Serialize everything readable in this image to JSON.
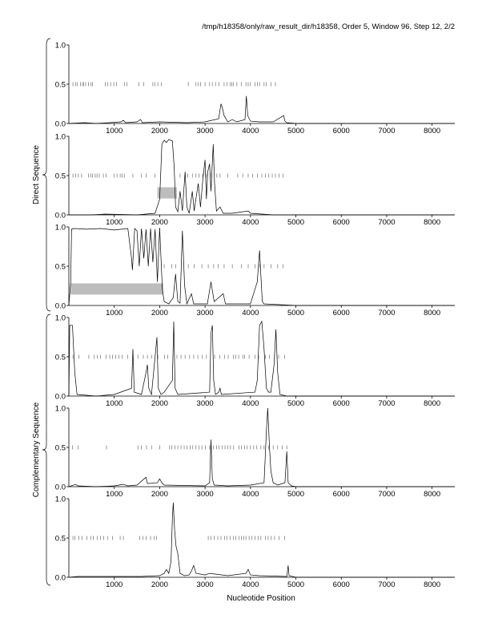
{
  "title": "/tmp/h18358/only/raw_result_dir/h18358, Order 5, Window 96, Step 12, 2/2",
  "xlabel": "Nucleotide Position",
  "group_labels": {
    "direct": "Direct Sequence",
    "complementary": "Complementary Sequence"
  },
  "colors": {
    "line": "#000000",
    "bar": "#bdbdbd",
    "axis": "#000000"
  },
  "chart_data": {
    "type": "line",
    "x_range": [
      0,
      8500
    ],
    "y_range": [
      0,
      1
    ],
    "x_ticks": [
      1000,
      2000,
      3000,
      4000,
      5000,
      6000,
      7000,
      8000
    ],
    "y_ticks": [
      0.0,
      0.5,
      1.0
    ],
    "x_tick_labels": [
      "1000",
      "2000",
      "3000",
      "4000",
      "5000",
      "6000",
      "7000",
      "8000"
    ],
    "y_tick_labels": [
      "0.0",
      "0.5",
      "1.0"
    ],
    "panels": [
      {
        "group": "direct",
        "line": [
          [
            0,
            0
          ],
          [
            350,
            0.01
          ],
          [
            600,
            0
          ],
          [
            900,
            0.01
          ],
          [
            1150,
            0.02
          ],
          [
            1200,
            0.04
          ],
          [
            1250,
            0.01
          ],
          [
            1500,
            0.02
          ],
          [
            1580,
            0.05
          ],
          [
            1620,
            0.01
          ],
          [
            2000,
            0.02
          ],
          [
            2600,
            0.01
          ],
          [
            3000,
            0.02
          ],
          [
            3300,
            0.06
          ],
          [
            3350,
            0.25
          ],
          [
            3380,
            0.2
          ],
          [
            3420,
            0.1
          ],
          [
            3500,
            0.02
          ],
          [
            3600,
            0.05
          ],
          [
            3700,
            0.02
          ],
          [
            3880,
            0.05
          ],
          [
            3910,
            0.35
          ],
          [
            3940,
            0.1
          ],
          [
            4000,
            0.03
          ],
          [
            4200,
            0.02
          ],
          [
            4500,
            0.02
          ],
          [
            4730,
            0.1
          ],
          [
            4760,
            0.03
          ],
          [
            4800,
            0.01
          ],
          [
            5000,
            0
          ],
          [
            8500,
            0
          ]
        ],
        "marks": [
          90,
          150,
          190,
          260,
          300,
          330,
          370,
          430,
          490,
          520,
          800,
          860,
          920,
          990,
          1050,
          1230,
          1280,
          1540,
          1650,
          1850,
          1900,
          1960,
          2040,
          2630,
          2800,
          2850,
          2900,
          3000,
          3100,
          3160,
          3230,
          3310,
          3420,
          3480,
          3550,
          3590,
          3620,
          3700,
          3800,
          3900,
          3950,
          4000,
          4100,
          4150,
          4200,
          4300,
          4350,
          4450,
          4550
        ],
        "bars": []
      },
      {
        "group": "direct",
        "line": [
          [
            0,
            0
          ],
          [
            500,
            0
          ],
          [
            800,
            0.01
          ],
          [
            1500,
            0
          ],
          [
            1900,
            0.02
          ],
          [
            2000,
            0.2
          ],
          [
            2050,
            0.9
          ],
          [
            2100,
            0.95
          ],
          [
            2150,
            0.92
          ],
          [
            2200,
            0.96
          ],
          [
            2280,
            0.94
          ],
          [
            2320,
            0.6
          ],
          [
            2350,
            0.1
          ],
          [
            2400,
            0.04
          ],
          [
            2450,
            0.3
          ],
          [
            2500,
            0.05
          ],
          [
            2560,
            0.55
          ],
          [
            2600,
            0.1
          ],
          [
            2650,
            0.02
          ],
          [
            2720,
            0.3
          ],
          [
            2760,
            0.05
          ],
          [
            2850,
            0.4
          ],
          [
            2900,
            0.1
          ],
          [
            2950,
            0.45
          ],
          [
            3000,
            0.7
          ],
          [
            3030,
            0.2
          ],
          [
            3060,
            0.55
          ],
          [
            3100,
            0.65
          ],
          [
            3130,
            0.3
          ],
          [
            3180,
            0.9
          ],
          [
            3210,
            0.4
          ],
          [
            3250,
            0.05
          ],
          [
            3330,
            0.1
          ],
          [
            3400,
            0.02
          ],
          [
            3600,
            0.02
          ],
          [
            3950,
            0.05
          ],
          [
            4000,
            0.02
          ],
          [
            4500,
            0
          ],
          [
            8500,
            0
          ]
        ],
        "marks": [
          90,
          150,
          210,
          280,
          430,
          480,
          520,
          580,
          620,
          670,
          760,
          820,
          1000,
          1060,
          1130,
          1170,
          1220,
          1410,
          1600,
          1700,
          1900,
          2450,
          2620,
          2720,
          2800,
          2870,
          2950,
          3030,
          3120,
          3260,
          3330,
          3500,
          3720,
          3830,
          3950,
          4050,
          4150,
          4250,
          4330,
          4400,
          4480,
          4550,
          4630,
          4720
        ],
        "bars": [
          [
            1950,
            2380,
            0.28
          ]
        ]
      },
      {
        "group": "direct",
        "line": [
          [
            0,
            0
          ],
          [
            40,
            0.3
          ],
          [
            60,
            0.97
          ],
          [
            100,
            0.98
          ],
          [
            400,
            0.97
          ],
          [
            700,
            0.98
          ],
          [
            1000,
            0.96
          ],
          [
            1300,
            0.98
          ],
          [
            1380,
            0.6
          ],
          [
            1400,
            0.45
          ],
          [
            1450,
            0.98
          ],
          [
            1500,
            0.95
          ],
          [
            1550,
            0.5
          ],
          [
            1600,
            0.98
          ],
          [
            1650,
            0.6
          ],
          [
            1700,
            0.97
          ],
          [
            1750,
            0.5
          ],
          [
            1800,
            0.98
          ],
          [
            1850,
            0.55
          ],
          [
            1900,
            0.97
          ],
          [
            1950,
            0.3
          ],
          [
            2000,
            0.99
          ],
          [
            2060,
            0.2
          ],
          [
            2100,
            0.05
          ],
          [
            2200,
            0.02
          ],
          [
            2300,
            0.1
          ],
          [
            2350,
            0.4
          ],
          [
            2400,
            0.05
          ],
          [
            2450,
            0.03
          ],
          [
            2500,
            0.95
          ],
          [
            2550,
            0.25
          ],
          [
            2600,
            0.02
          ],
          [
            2700,
            0.15
          ],
          [
            2750,
            0.02
          ],
          [
            3050,
            0.02
          ],
          [
            3130,
            0.3
          ],
          [
            3200,
            0.05
          ],
          [
            3400,
            0.15
          ],
          [
            3450,
            0.02
          ],
          [
            4000,
            0.02
          ],
          [
            4150,
            0.3
          ],
          [
            4200,
            0.7
          ],
          [
            4260,
            0.05
          ],
          [
            4300,
            0.02
          ],
          [
            5000,
            0
          ],
          [
            8500,
            0
          ]
        ],
        "marks": [
          2100,
          2270,
          2350,
          2630,
          2760,
          2930,
          3070,
          3190,
          3290,
          3420,
          3600,
          3800,
          3950,
          4100,
          4200,
          4300,
          4450,
          4600,
          4720
        ],
        "bars": [
          [
            40,
            2080,
            0.21
          ]
        ]
      },
      {
        "group": "complementary",
        "line": [
          [
            0,
            0
          ],
          [
            20,
            0.9
          ],
          [
            80,
            0.9
          ],
          [
            130,
            0.3
          ],
          [
            180,
            0.02
          ],
          [
            600,
            0
          ],
          [
            1000,
            0.02
          ],
          [
            1380,
            0.1
          ],
          [
            1410,
            0.6
          ],
          [
            1440,
            0.05
          ],
          [
            1600,
            0.02
          ],
          [
            1700,
            0.3
          ],
          [
            1730,
            0.4
          ],
          [
            1760,
            0.1
          ],
          [
            1820,
            0.02
          ],
          [
            1900,
            0.5
          ],
          [
            1940,
            0.75
          ],
          [
            1970,
            0.1
          ],
          [
            2030,
            0.02
          ],
          [
            2100,
            0.05
          ],
          [
            2280,
            0.2
          ],
          [
            2310,
            0.95
          ],
          [
            2340,
            0.1
          ],
          [
            2400,
            0.02
          ],
          [
            3100,
            0.05
          ],
          [
            3130,
            0.8
          ],
          [
            3160,
            0.9
          ],
          [
            3190,
            0.2
          ],
          [
            3230,
            0.02
          ],
          [
            3300,
            0.05
          ],
          [
            3330,
            0.1
          ],
          [
            3360,
            0.02
          ],
          [
            4100,
            0.05
          ],
          [
            4150,
            0.2
          ],
          [
            4200,
            0.9
          ],
          [
            4250,
            0.95
          ],
          [
            4300,
            0.6
          ],
          [
            4350,
            0.1
          ],
          [
            4400,
            0.05
          ],
          [
            4450,
            0.05
          ],
          [
            4520,
            0.4
          ],
          [
            4560,
            0.85
          ],
          [
            4600,
            0.3
          ],
          [
            4650,
            0.02
          ],
          [
            4800,
            0
          ],
          [
            8500,
            0
          ]
        ],
        "marks": [
          90,
          220,
          440,
          560,
          630,
          700,
          820,
          900,
          960,
          1030,
          1100,
          1170,
          1300,
          1520,
          1640,
          1730,
          1820,
          1960,
          2110,
          2180,
          2380,
          2470,
          2560,
          2660,
          2750,
          2840,
          2940,
          3030,
          3210,
          3320,
          3430,
          3510,
          3620,
          3680,
          3740,
          3830,
          3870,
          3970,
          4100,
          4180,
          4330,
          4420,
          4530,
          4620,
          4750
        ],
        "bars": []
      },
      {
        "group": "complementary",
        "line": [
          [
            0,
            0
          ],
          [
            150,
            0.03
          ],
          [
            200,
            0.01
          ],
          [
            600,
            0
          ],
          [
            1000,
            0.01
          ],
          [
            1200,
            0.03
          ],
          [
            1300,
            0.01
          ],
          [
            1500,
            0.02
          ],
          [
            1700,
            0.12
          ],
          [
            1730,
            0.04
          ],
          [
            1950,
            0.05
          ],
          [
            2000,
            0.1
          ],
          [
            2050,
            0.05
          ],
          [
            2100,
            0.02
          ],
          [
            3000,
            0.01
          ],
          [
            3100,
            0.05
          ],
          [
            3130,
            0.6
          ],
          [
            3160,
            0.1
          ],
          [
            3200,
            0.02
          ],
          [
            3500,
            0.01
          ],
          [
            4000,
            0.02
          ],
          [
            4300,
            0.05
          ],
          [
            4350,
            0.7
          ],
          [
            4380,
            1.0
          ],
          [
            4420,
            0.5
          ],
          [
            4450,
            0.2
          ],
          [
            4500,
            0.05
          ],
          [
            4600,
            0.02
          ],
          [
            4760,
            0.05
          ],
          [
            4800,
            0.45
          ],
          [
            4830,
            0.05
          ],
          [
            4900,
            0.01
          ],
          [
            5000,
            0
          ],
          [
            8500,
            0
          ]
        ],
        "marks": [
          80,
          200,
          830,
          1520,
          1600,
          1710,
          1820,
          2000,
          2220,
          2270,
          2340,
          2400,
          2470,
          2540,
          2600,
          2670,
          2730,
          2800,
          2870,
          2930,
          3010,
          3100,
          3180,
          3250,
          3310,
          3380,
          3440,
          3500,
          3560,
          3630,
          3750,
          3800,
          3870,
          3930,
          4000,
          4070,
          4140,
          4230,
          4300,
          4400,
          4500,
          4600,
          4700,
          4800
        ],
        "bars": []
      },
      {
        "group": "complementary",
        "line": [
          [
            0,
            0
          ],
          [
            200,
            0.01
          ],
          [
            1600,
            0.01
          ],
          [
            2000,
            0.02
          ],
          [
            2100,
            0.05
          ],
          [
            2150,
            0.1
          ],
          [
            2200,
            0.05
          ],
          [
            2250,
            0.2
          ],
          [
            2280,
            0.75
          ],
          [
            2300,
            0.95
          ],
          [
            2330,
            0.6
          ],
          [
            2360,
            0.4
          ],
          [
            2400,
            0.3
          ],
          [
            2450,
            0.05
          ],
          [
            2550,
            0.02
          ],
          [
            2650,
            0.03
          ],
          [
            2700,
            0.08
          ],
          [
            2750,
            0.15
          ],
          [
            2800,
            0.05
          ],
          [
            3000,
            0.03
          ],
          [
            3100,
            0.05
          ],
          [
            3500,
            0.02
          ],
          [
            3900,
            0.05
          ],
          [
            3950,
            0.1
          ],
          [
            4000,
            0.03
          ],
          [
            4200,
            0.02
          ],
          [
            4800,
            0.01
          ],
          [
            4830,
            0.15
          ],
          [
            4850,
            0.02
          ],
          [
            5000,
            0
          ],
          [
            8500,
            0
          ]
        ],
        "marks": [
          90,
          130,
          220,
          290,
          400,
          480,
          540,
          630,
          700,
          770,
          850,
          960,
          1130,
          1200,
          1560,
          1630,
          1700,
          1800,
          1880,
          1930,
          3070,
          3130,
          3200,
          3280,
          3350,
          3430,
          3480,
          3550,
          3620,
          3680,
          3750,
          3800,
          3850,
          3900,
          3970,
          4030,
          4100,
          4170,
          4230,
          4330,
          4390,
          4450,
          4530,
          4630,
          4750
        ],
        "bars": []
      }
    ]
  }
}
